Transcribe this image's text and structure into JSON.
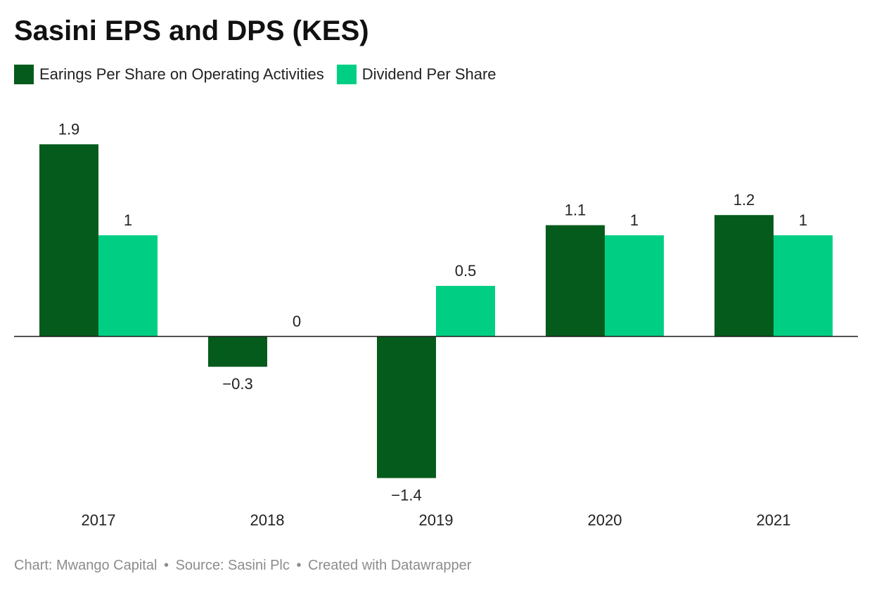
{
  "colors": {
    "eps": "#045b1c",
    "dps": "#00cf83",
    "axis": "#1a1a1a"
  },
  "chart_data": {
    "type": "bar",
    "title": "Sasini EPS and DPS (KES)",
    "categories": [
      "2017",
      "2018",
      "2019",
      "2020",
      "2021"
    ],
    "series": [
      {
        "name": "Earings Per Share on Operating Activities",
        "values": [
          1.9,
          -0.3,
          -1.4,
          1.1,
          1.2
        ],
        "labels": [
          "1.9",
          "−0.3",
          "−1.4",
          "1.1",
          "1.2"
        ]
      },
      {
        "name": "Dividend Per Share",
        "values": [
          1,
          0,
          0.5,
          1,
          1
        ],
        "labels": [
          "1",
          "0",
          "0.5",
          "1",
          "1"
        ]
      }
    ],
    "xlabel": "",
    "ylabel": "",
    "grid": false,
    "legend_position": "top-left"
  },
  "footer": {
    "chart_credit": "Chart: Mwango Capital",
    "source": "Source: Sasini Plc",
    "tool": "Created with Datawrapper",
    "separator": "•"
  }
}
